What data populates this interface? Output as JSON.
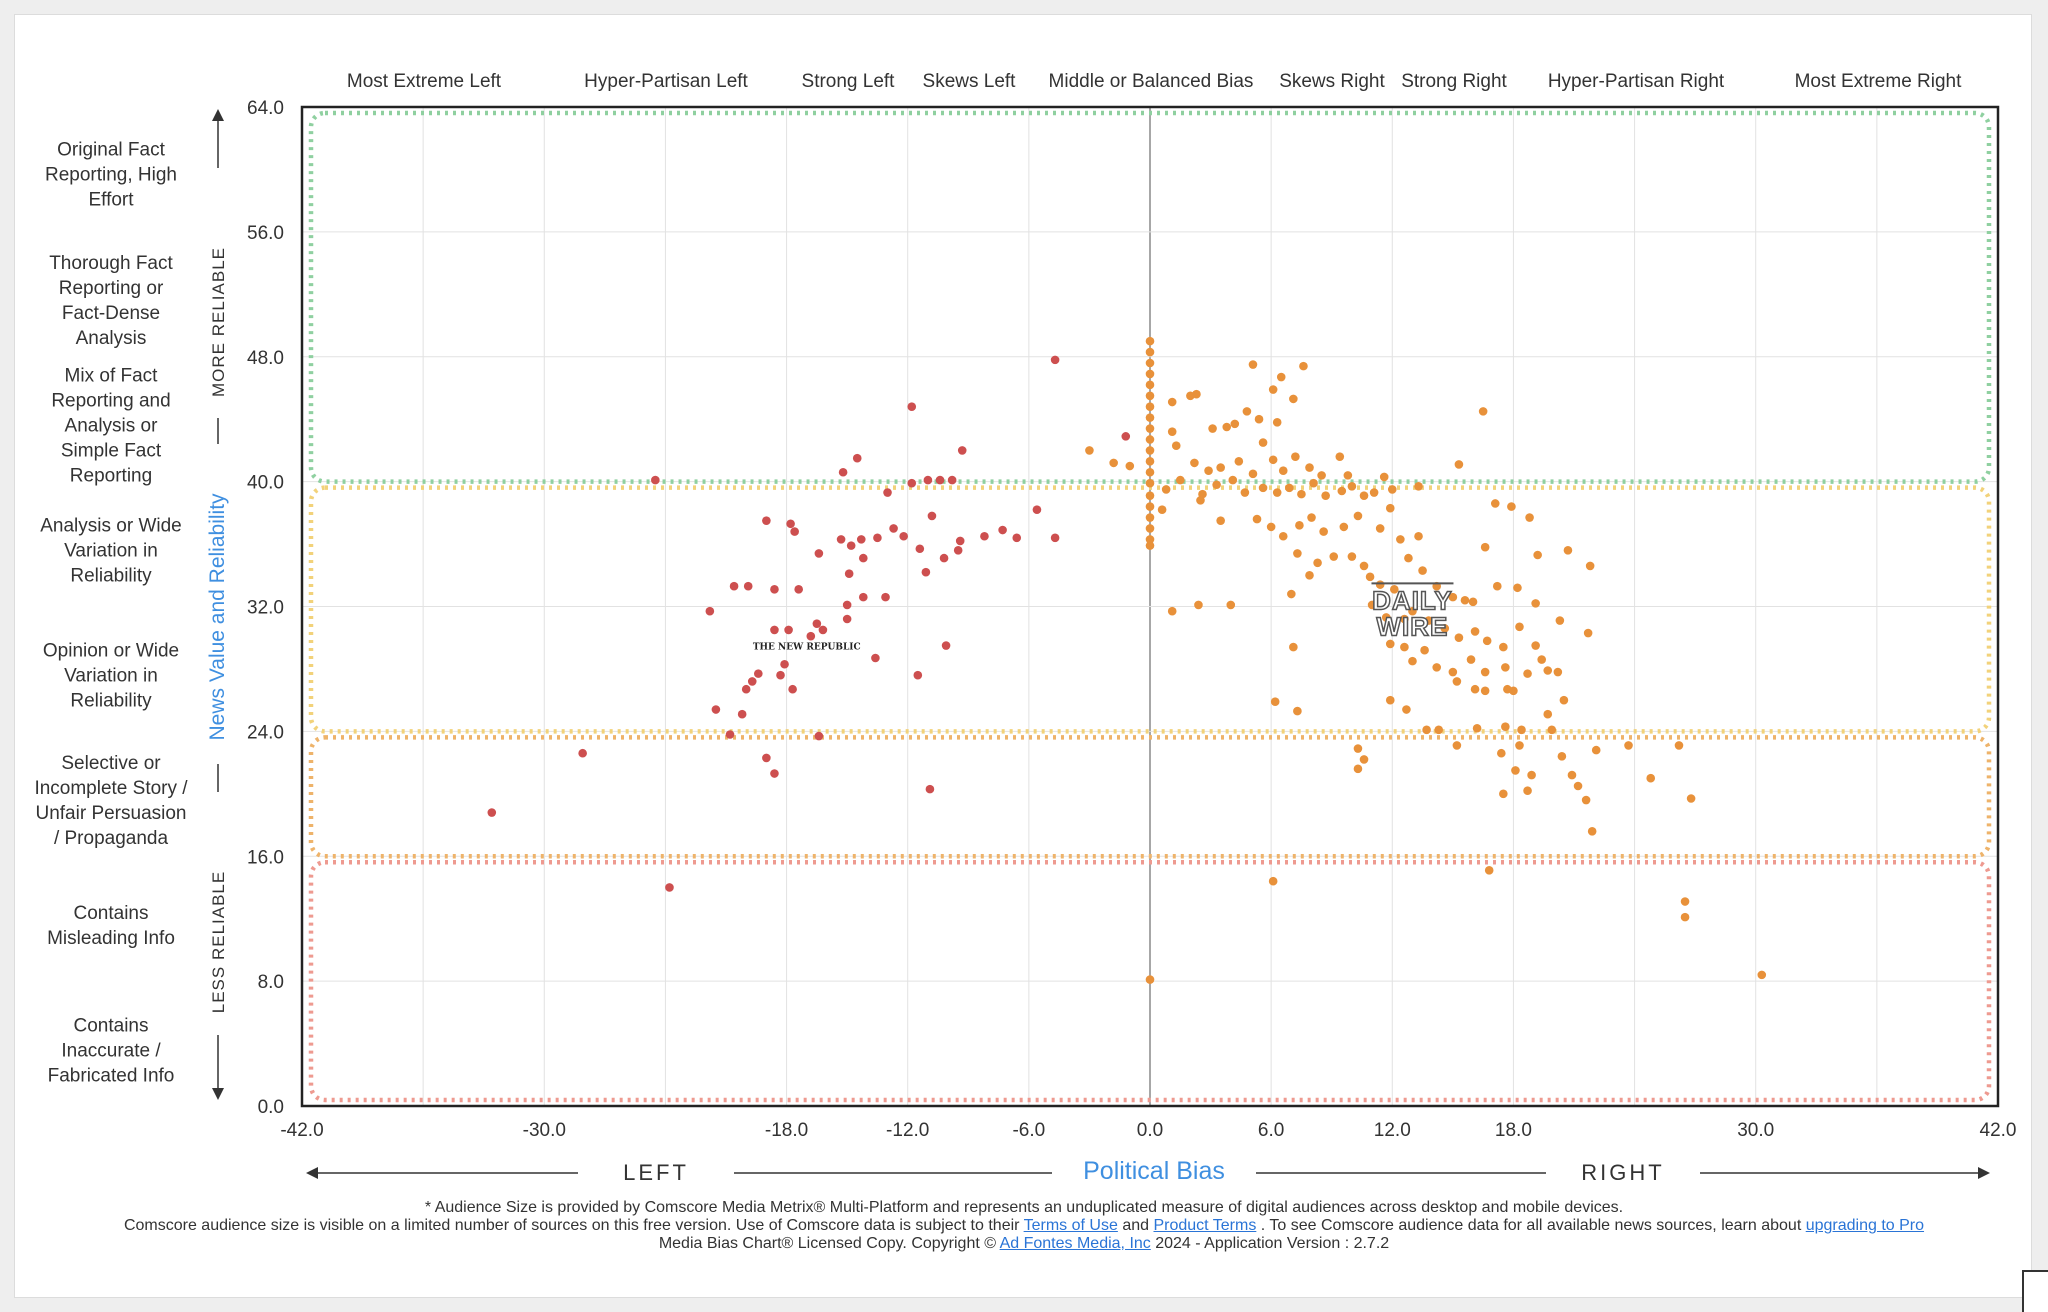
{
  "chart_data": {
    "type": "scatter",
    "title": "",
    "xlabel": "Political Bias",
    "ylabel": "News Value and Reliability",
    "xlim": [
      -42,
      42
    ],
    "ylim": [
      0,
      64
    ],
    "x_ticks": [
      "-42.0",
      "-30.0",
      "-18.0",
      "-12.0",
      "-6.0",
      "0.0",
      "6.0",
      "12.0",
      "18.0",
      "30.0",
      "42.0"
    ],
    "y_ticks": [
      "64.0",
      "56.0",
      "48.0",
      "40.0",
      "32.0",
      "24.0",
      "16.0",
      "8.0",
      "0.0"
    ],
    "grid": true,
    "bias_categories": [
      "Most Extreme Left",
      "Hyper-Partisan Left",
      "Strong Left",
      "Skews Left",
      "Middle or Balanced Bias",
      "Skews Right",
      "Strong Right",
      "Hyper-Partisan Right",
      "Most Extreme Right"
    ],
    "reliability_categories": [
      "Original Fact Reporting, High Effort",
      "Thorough Fact Reporting or Fact-Dense Analysis",
      "Mix of Fact Reporting and Analysis or Simple Fact Reporting",
      "Analysis or Wide Variation in Reliability",
      "Opinion or Wide Variation in Reliability",
      "Selective or Incomplete Story / Unfair Persuasion / Propaganda",
      "Contains Misleading Info",
      "Contains Inaccurate / Fabricated Info"
    ],
    "side_labels": {
      "more": "MORE RELIABLE",
      "less": "LESS RELIABLE",
      "left": "LEFT",
      "right": "RIGHT"
    },
    "zones": [
      {
        "name": "green",
        "y_range": [
          40,
          64
        ],
        "color": "#8fd0a0"
      },
      {
        "name": "yellow",
        "y_range": [
          24,
          40
        ],
        "color": "#f2d27a"
      },
      {
        "name": "orange",
        "y_range": [
          16,
          24
        ],
        "color": "#eeb36a"
      },
      {
        "name": "red",
        "y_range": [
          0,
          16
        ],
        "color": "#ee9a90"
      }
    ],
    "logos": [
      {
        "text": "THE NEW REPUBLIC",
        "x": -17,
        "y": 29.5
      },
      {
        "text_lines": [
          "DAILY",
          "WIRE"
        ],
        "x": 13,
        "y": 31.3
      }
    ],
    "series": [
      {
        "name": "left-leaning sources",
        "color": "#cd4f4f",
        "points": [
          [
            -4.7,
            47.8
          ],
          [
            -1.2,
            42.9
          ],
          [
            -24.5,
            40.1
          ],
          [
            -11.8,
            44.8
          ],
          [
            -9.3,
            42
          ],
          [
            -14.5,
            41.5
          ],
          [
            -15.2,
            40.6
          ],
          [
            -13,
            39.3
          ],
          [
            -11.8,
            39.9
          ],
          [
            -11,
            40.1
          ],
          [
            -10.4,
            40.1
          ],
          [
            -9.8,
            40.1
          ],
          [
            -5.6,
            38.2
          ],
          [
            -19,
            37.5
          ],
          [
            -17.8,
            37.3
          ],
          [
            -17.6,
            36.8
          ],
          [
            -16.4,
            35.4
          ],
          [
            -15.3,
            36.3
          ],
          [
            -14.8,
            35.9
          ],
          [
            -14.3,
            36.3
          ],
          [
            -13.5,
            36.4
          ],
          [
            -12.7,
            37
          ],
          [
            -12.2,
            36.5
          ],
          [
            -11.4,
            35.7
          ],
          [
            -10.8,
            37.8
          ],
          [
            -10.2,
            35.1
          ],
          [
            -9.5,
            35.6
          ],
          [
            -9.4,
            36.2
          ],
          [
            -8.2,
            36.5
          ],
          [
            -7.3,
            36.9
          ],
          [
            -6.6,
            36.4
          ],
          [
            -4.7,
            36.4
          ],
          [
            -14.9,
            34.1
          ],
          [
            -14.2,
            35.1
          ],
          [
            -11.1,
            34.2
          ],
          [
            -20.6,
            33.3
          ],
          [
            -19.9,
            33.3
          ],
          [
            -18.6,
            33.1
          ],
          [
            -17.4,
            33.1
          ],
          [
            -15,
            32.1
          ],
          [
            -14.2,
            32.6
          ],
          [
            -13.1,
            32.6
          ],
          [
            -21.8,
            31.7
          ],
          [
            -15,
            31.2
          ],
          [
            -18.6,
            30.5
          ],
          [
            -17.9,
            30.5
          ],
          [
            -16.5,
            30.9
          ],
          [
            -16.2,
            30.5
          ],
          [
            -16.8,
            30.1
          ],
          [
            -10.1,
            29.5
          ],
          [
            -18.1,
            28.3
          ],
          [
            -13.6,
            28.7
          ],
          [
            -19.4,
            27.7
          ],
          [
            -18.3,
            27.6
          ],
          [
            -11.5,
            27.6
          ],
          [
            -19.7,
            27.2
          ],
          [
            -20,
            26.7
          ],
          [
            -17.7,
            26.7
          ],
          [
            -21.5,
            25.4
          ],
          [
            -20.2,
            25.1
          ],
          [
            -20.8,
            23.8
          ],
          [
            -16.4,
            23.7
          ],
          [
            -28.1,
            22.6
          ],
          [
            -19,
            22.3
          ],
          [
            -18.6,
            21.3
          ],
          [
            -10.9,
            20.3
          ],
          [
            -32.6,
            18.8
          ],
          [
            -23.8,
            14
          ]
        ]
      },
      {
        "name": "right-leaning sources",
        "color": "#e8913a",
        "points": [
          [
            0,
            49
          ],
          [
            0,
            48.3
          ],
          [
            0,
            47.6
          ],
          [
            0,
            46.9
          ],
          [
            0,
            46.2
          ],
          [
            0,
            45.5
          ],
          [
            0,
            44.8
          ],
          [
            0,
            44.1
          ],
          [
            0,
            43.4
          ],
          [
            0,
            42.7
          ],
          [
            0,
            42
          ],
          [
            0,
            41.3
          ],
          [
            0,
            40.6
          ],
          [
            0,
            39.9
          ],
          [
            0,
            39.1
          ],
          [
            0,
            38.4
          ],
          [
            0,
            37.7
          ],
          [
            0,
            37
          ],
          [
            0,
            36.3
          ],
          [
            0,
            35.9
          ],
          [
            -3,
            42
          ],
          [
            -1.8,
            41.2
          ],
          [
            -1,
            41
          ],
          [
            1.1,
            45.1
          ],
          [
            2,
            45.5
          ],
          [
            2.3,
            45.6
          ],
          [
            3.1,
            43.4
          ],
          [
            3.8,
            43.5
          ],
          [
            4.2,
            43.7
          ],
          [
            5.4,
            44
          ],
          [
            5.6,
            42.5
          ],
          [
            6.1,
            45.9
          ],
          [
            6.5,
            46.7
          ],
          [
            7.1,
            45.3
          ],
          [
            7.6,
            47.4
          ],
          [
            5.1,
            47.5
          ],
          [
            6.3,
            43.8
          ],
          [
            4.8,
            44.5
          ],
          [
            1.3,
            42.3
          ],
          [
            1.1,
            43.2
          ],
          [
            2.2,
            41.2
          ],
          [
            2.9,
            40.7
          ],
          [
            3.5,
            40.9
          ],
          [
            4.4,
            41.3
          ],
          [
            5.1,
            40.5
          ],
          [
            6.1,
            41.4
          ],
          [
            6.6,
            40.7
          ],
          [
            7.2,
            41.6
          ],
          [
            7.9,
            40.9
          ],
          [
            8.5,
            40.4
          ],
          [
            9.4,
            41.6
          ],
          [
            9.8,
            40.4
          ],
          [
            0.8,
            39.5
          ],
          [
            1.5,
            40.1
          ],
          [
            2.6,
            39.2
          ],
          [
            3.3,
            39.8
          ],
          [
            4.1,
            40.1
          ],
          [
            4.7,
            39.3
          ],
          [
            5.6,
            39.6
          ],
          [
            6.3,
            39.3
          ],
          [
            6.9,
            39.6
          ],
          [
            7.5,
            39.2
          ],
          [
            8.1,
            39.9
          ],
          [
            8.7,
            39.1
          ],
          [
            9.5,
            39.4
          ],
          [
            10,
            39.7
          ],
          [
            10.6,
            39.1
          ],
          [
            11.1,
            39.3
          ],
          [
            12,
            39.5
          ],
          [
            13.3,
            39.7
          ],
          [
            15.3,
            41.1
          ],
          [
            11.6,
            40.3
          ],
          [
            0.6,
            38.2
          ],
          [
            2.5,
            38.8
          ],
          [
            3.5,
            37.5
          ],
          [
            5.3,
            37.6
          ],
          [
            6,
            37.1
          ],
          [
            6.6,
            36.5
          ],
          [
            7.4,
            37.2
          ],
          [
            8,
            37.7
          ],
          [
            8.6,
            36.8
          ],
          [
            9.6,
            37.1
          ],
          [
            10.3,
            37.8
          ],
          [
            11.4,
            37
          ],
          [
            11.9,
            38.3
          ],
          [
            12.4,
            36.3
          ],
          [
            13.3,
            36.5
          ],
          [
            7.3,
            35.4
          ],
          [
            8.3,
            34.8
          ],
          [
            9.1,
            35.2
          ],
          [
            10,
            35.2
          ],
          [
            10.6,
            34.6
          ],
          [
            10.9,
            33.9
          ],
          [
            11.4,
            33.4
          ],
          [
            12.1,
            33.1
          ],
          [
            12.8,
            35.1
          ],
          [
            13.5,
            34.3
          ],
          [
            14.2,
            33.3
          ],
          [
            15,
            32.6
          ],
          [
            15.6,
            32.4
          ],
          [
            16,
            32.3
          ],
          [
            1.1,
            31.7
          ],
          [
            2.4,
            32.1
          ],
          [
            4,
            32.1
          ],
          [
            7,
            32.8
          ],
          [
            7.9,
            34
          ],
          [
            11,
            32.1
          ],
          [
            11.7,
            31.3
          ],
          [
            12.6,
            31.2
          ],
          [
            13,
            31.7
          ],
          [
            13.8,
            31.1
          ],
          [
            14.6,
            30.6
          ],
          [
            15.3,
            30
          ],
          [
            16.1,
            30.4
          ],
          [
            16.7,
            29.8
          ],
          [
            17.5,
            29.4
          ],
          [
            18.3,
            30.7
          ],
          [
            19.1,
            29.5
          ],
          [
            11.9,
            29.6
          ],
          [
            12.6,
            29.4
          ],
          [
            13,
            28.5
          ],
          [
            13.6,
            29.2
          ],
          [
            14.2,
            28.1
          ],
          [
            15,
            27.8
          ],
          [
            15.9,
            28.6
          ],
          [
            16.6,
            27.8
          ],
          [
            17.6,
            28.1
          ],
          [
            18.7,
            27.7
          ],
          [
            19.4,
            28.6
          ],
          [
            19.7,
            27.9
          ],
          [
            20.2,
            27.8
          ],
          [
            15.2,
            27.2
          ],
          [
            16.1,
            26.7
          ],
          [
            16.6,
            26.6
          ],
          [
            17.7,
            26.7
          ],
          [
            18,
            26.6
          ],
          [
            11.9,
            26
          ],
          [
            12.7,
            25.4
          ],
          [
            16.2,
            24.2
          ],
          [
            17.6,
            24.3
          ],
          [
            18.4,
            24.1
          ],
          [
            19.7,
            25.1
          ],
          [
            20.5,
            26
          ],
          [
            21.7,
            30.3
          ],
          [
            21.8,
            34.6
          ],
          [
            7.1,
            29.4
          ],
          [
            6.2,
            25.9
          ],
          [
            7.3,
            25.3
          ],
          [
            14.3,
            24.1
          ],
          [
            15.2,
            23.1
          ],
          [
            17.4,
            22.6
          ],
          [
            18.3,
            23.1
          ],
          [
            19.9,
            24.1
          ],
          [
            20.4,
            22.4
          ],
          [
            20.9,
            21.2
          ],
          [
            22.1,
            22.8
          ],
          [
            23.7,
            23.1
          ],
          [
            26.2,
            23.1
          ],
          [
            21.2,
            20.5
          ],
          [
            21.6,
            19.6
          ],
          [
            21.9,
            17.6
          ],
          [
            24.8,
            21
          ],
          [
            26.8,
            19.7
          ],
          [
            18.1,
            21.5
          ],
          [
            18.9,
            21.2
          ],
          [
            18.7,
            20.2
          ],
          [
            17.5,
            20
          ],
          [
            10.3,
            22.9
          ],
          [
            10.6,
            22.2
          ],
          [
            10.3,
            21.6
          ],
          [
            13.7,
            24.1
          ],
          [
            16.8,
            15.1
          ],
          [
            6.1,
            14.4
          ],
          [
            26.5,
            13.1
          ],
          [
            26.5,
            12.1
          ],
          [
            30.3,
            8.4
          ],
          [
            0,
            8.1
          ],
          [
            16.5,
            44.5
          ],
          [
            17.1,
            38.6
          ],
          [
            17.9,
            38.4
          ],
          [
            18.8,
            37.7
          ],
          [
            20.7,
            35.6
          ],
          [
            19.2,
            35.3
          ],
          [
            16.6,
            35.8
          ],
          [
            17.2,
            33.3
          ],
          [
            18.2,
            33.2
          ],
          [
            19.1,
            32.2
          ],
          [
            20.3,
            31.1
          ]
        ]
      }
    ]
  },
  "footer": {
    "line1": "* Audience Size is provided by Comscore Media Metrix® Multi-Platform and represents an unduplicated measure of digital audiences across desktop and mobile devices.",
    "line2_a": "Comscore audience size is visible on a limited number of sources on this free version. Use of Comscore data is subject to their",
    "terms_link": "Terms of Use",
    "line2_b": "and",
    "product_link": "Product Terms",
    "line2_c": ". To see Comscore audience data for all available news sources, learn about",
    "upgrade_link": "upgrading to Pro",
    "line3_a": "Media Bias Chart® Licensed Copy. Copyright ©",
    "adfontes_link": "Ad Fontes Media, Inc",
    "line3_b": "2024 - Application Version : 2.7.2"
  },
  "colors": {
    "accent_blue": "#3f8fe0",
    "link_blue": "#2a74d6"
  }
}
